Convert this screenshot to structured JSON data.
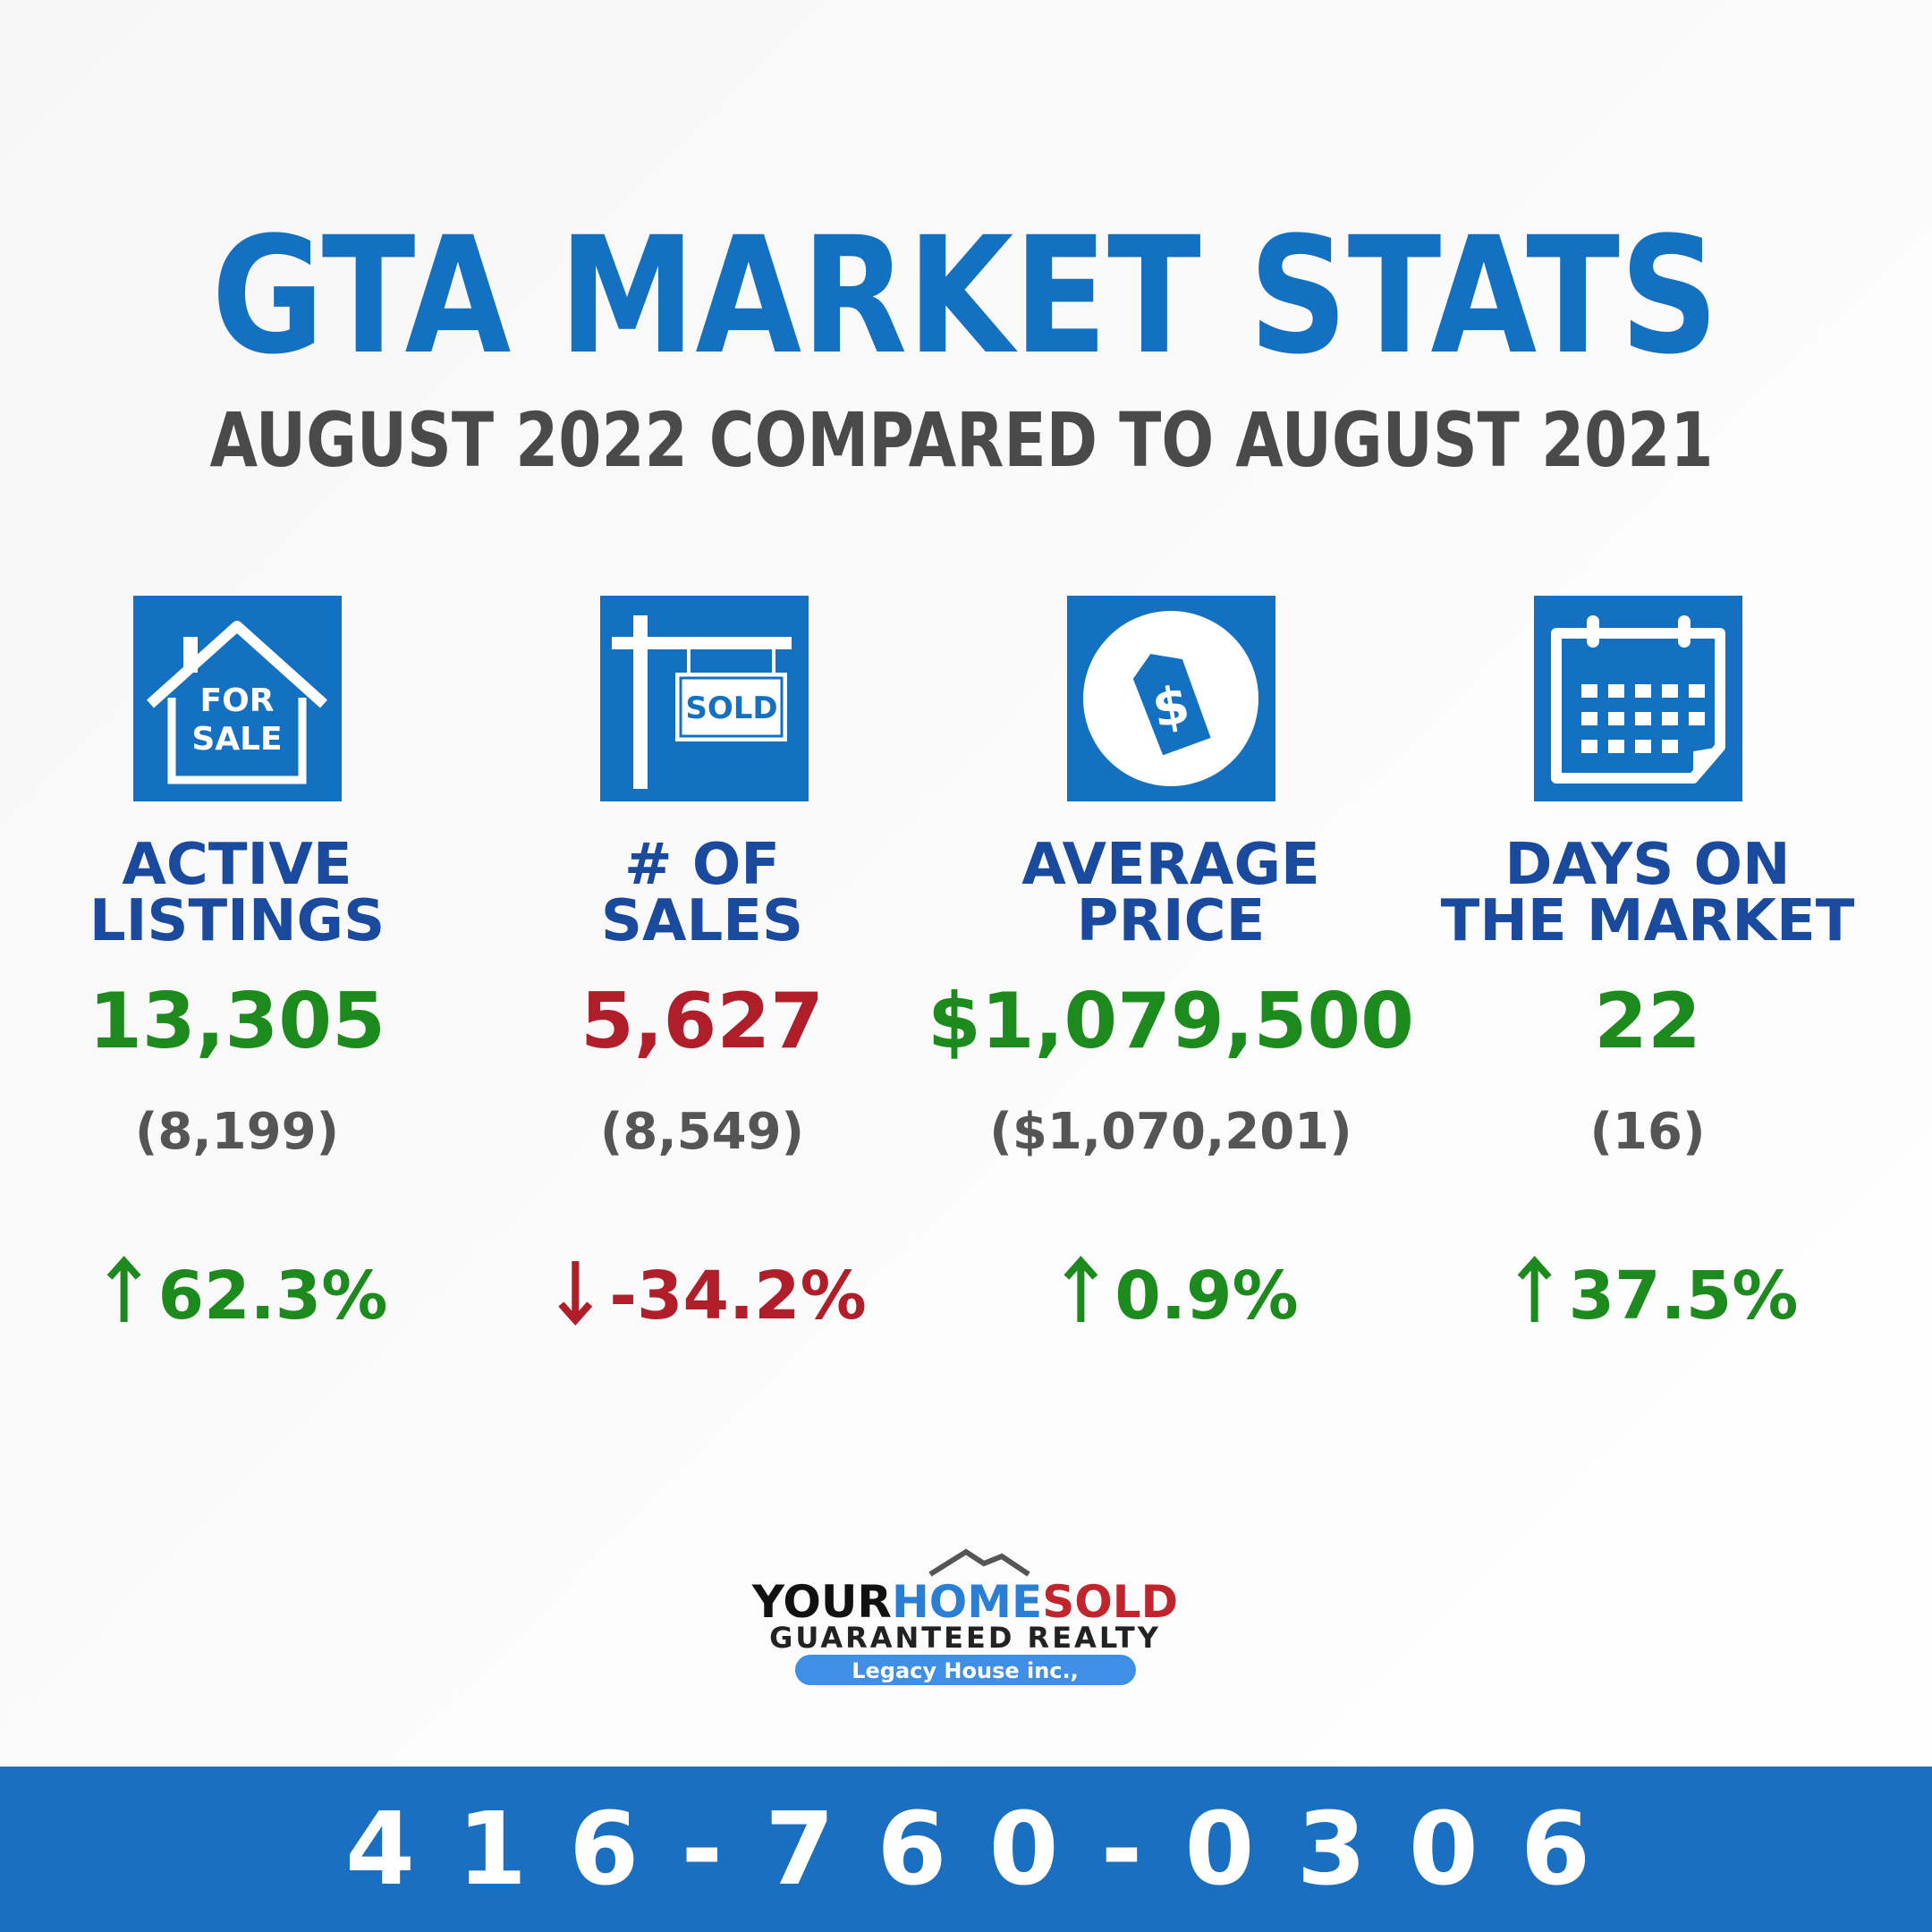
{
  "header": {
    "title": "GTA MARKET STATS",
    "subtitle": "AUGUST 2022 COMPARED TO AUGUST 2021"
  },
  "stats": [
    {
      "icon_text": [
        "FOR",
        "SALE"
      ],
      "label": [
        "ACTIVE",
        "LISTINGS"
      ],
      "value": "13,305",
      "previous": "(8,199)",
      "change": "62.3%"
    },
    {
      "icon_text": [
        "SOLD"
      ],
      "label": [
        "# OF",
        "SALES"
      ],
      "value": "5,627",
      "previous": "(8,549)",
      "change": "-34.2%"
    },
    {
      "icon_text": [
        "$"
      ],
      "label": [
        "AVERAGE",
        "PRICE"
      ],
      "value": "$1,079,500",
      "previous": "($1,070,201)",
      "change": "0.9%"
    },
    {
      "icon_text": [],
      "label": [
        "DAYS ON",
        "THE MARKET"
      ],
      "value": "22",
      "previous": "(16)",
      "change": "37.5%"
    }
  ],
  "logo": {
    "your": "YOUR",
    "home": "HOME",
    "sold": "SOLD",
    "tagline": "GUARANTEED REALTY",
    "badge": "Legacy House inc.,"
  },
  "footer": {
    "phone": "416-760-0306"
  }
}
